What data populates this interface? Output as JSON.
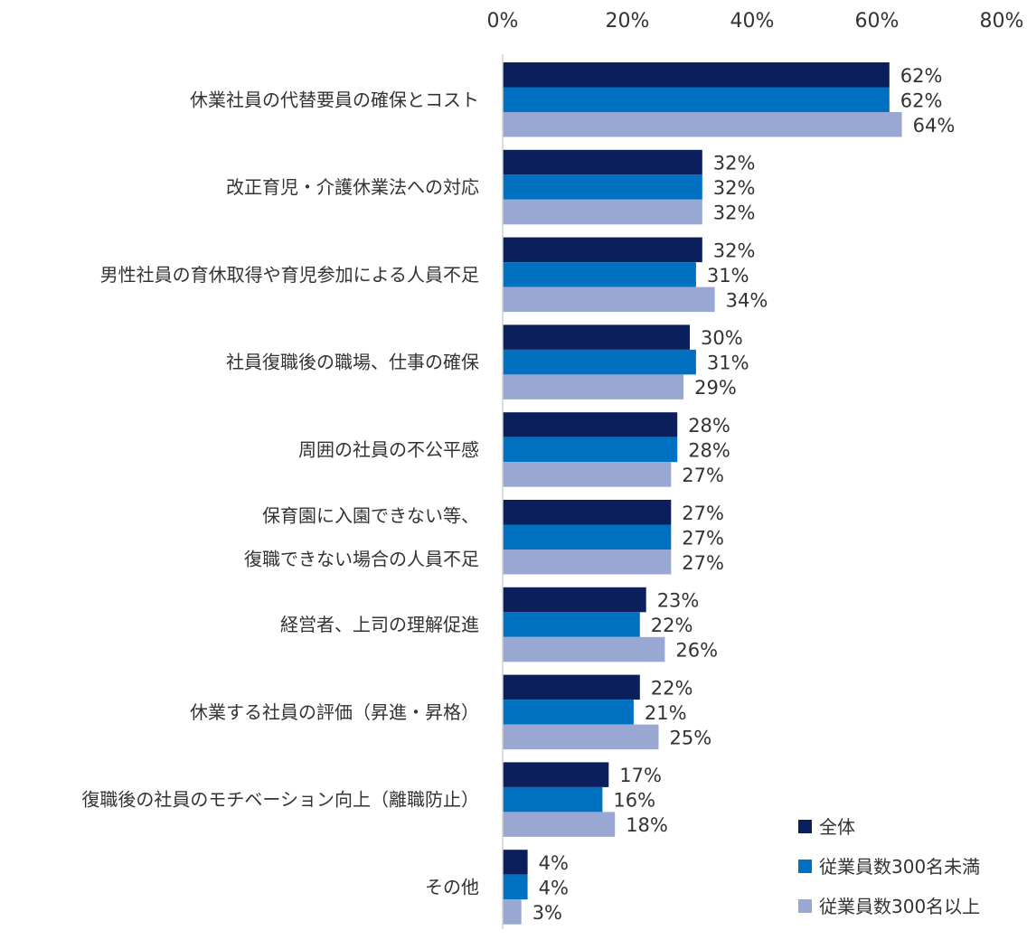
{
  "chart_data": {
    "type": "bar",
    "orientation": "horizontal",
    "categories": [
      [
        "休業社員の代替要員の確保とコスト"
      ],
      [
        "改正育児・介護休業法への対応"
      ],
      [
        "男性社員の育休取得や育児参加による人員不足"
      ],
      [
        "社員復職後の職場、仕事の確保"
      ],
      [
        "周囲の社員の不公平感"
      ],
      [
        "保育園に入園できない等、",
        "復職できない場合の人員不足"
      ],
      [
        "経営者、上司の理解促進"
      ],
      [
        "休業する社員の評価（昇進・昇格）"
      ],
      [
        "復職後の社員のモチベーション向上（離職防止）"
      ],
      [
        "その他"
      ]
    ],
    "series": [
      {
        "name": "全体",
        "color": "#0a1f5c",
        "values": [
          62,
          32,
          32,
          30,
          28,
          27,
          23,
          22,
          17,
          4
        ]
      },
      {
        "name": "従業員数300名未満",
        "color": "#0070c0",
        "values": [
          62,
          32,
          31,
          31,
          28,
          27,
          22,
          21,
          16,
          4
        ]
      },
      {
        "name": "従業員数300名以上",
        "color": "#99a8d3",
        "values": [
          64,
          32,
          34,
          29,
          27,
          27,
          26,
          25,
          18,
          3
        ]
      }
    ],
    "value_suffix": "%",
    "xlim": [
      0,
      80
    ],
    "xticks": [
      "0%",
      "20%",
      "40%",
      "60%",
      "80%"
    ],
    "axis_position": "top",
    "legend_position": "bottom-right",
    "grid": false
  }
}
